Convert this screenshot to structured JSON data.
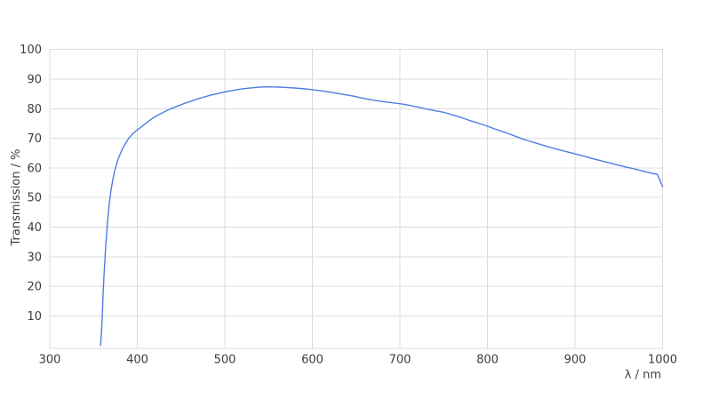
{
  "chart": {
    "background": "#ffffff",
    "text_color": "#3d3d3d",
    "grid_color": "#dcdcdc",
    "line_color": "#4d7ee0"
  },
  "chart_data": {
    "type": "line",
    "title": "",
    "xlabel": "λ / nm",
    "ylabel": "Transmission / %",
    "xlim": [
      300,
      1000
    ],
    "ylim": [
      0,
      100
    ],
    "x_ticks": [
      300,
      400,
      500,
      600,
      700,
      800,
      900,
      1000
    ],
    "y_ticks": [
      10,
      20,
      30,
      40,
      50,
      60,
      70,
      80,
      90,
      100
    ],
    "grid": "on",
    "legend": "none",
    "series": [
      {
        "name": "Transmission",
        "color": "#4d7ee0",
        "points": [
          [
            358,
            0
          ],
          [
            359,
            4
          ],
          [
            360,
            10
          ],
          [
            361,
            18
          ],
          [
            362,
            24
          ],
          [
            363,
            29
          ],
          [
            364,
            34
          ],
          [
            365,
            38
          ],
          [
            366,
            42
          ],
          [
            367,
            45
          ],
          [
            368,
            48
          ],
          [
            370,
            52.5
          ],
          [
            372,
            56
          ],
          [
            374,
            58.8
          ],
          [
            376,
            61
          ],
          [
            378,
            62.9
          ],
          [
            380,
            64.4
          ],
          [
            383,
            66.4
          ],
          [
            386,
            68
          ],
          [
            390,
            69.9
          ],
          [
            394,
            71.3
          ],
          [
            398,
            72.4
          ],
          [
            403,
            73.5
          ],
          [
            408,
            74.7
          ],
          [
            413,
            75.8
          ],
          [
            418,
            76.9
          ],
          [
            424,
            77.9
          ],
          [
            430,
            78.8
          ],
          [
            436,
            79.7
          ],
          [
            442,
            80.4
          ],
          [
            448,
            81.1
          ],
          [
            454,
            81.8
          ],
          [
            460,
            82.4
          ],
          [
            466,
            83
          ],
          [
            472,
            83.6
          ],
          [
            478,
            84.1
          ],
          [
            484,
            84.6
          ],
          [
            490,
            85
          ],
          [
            496,
            85.4
          ],
          [
            502,
            85.8
          ],
          [
            508,
            86.1
          ],
          [
            514,
            86.4
          ],
          [
            520,
            86.7
          ],
          [
            526,
            86.9
          ],
          [
            532,
            87.1
          ],
          [
            538,
            87.25
          ],
          [
            544,
            87.35
          ],
          [
            550,
            87.4
          ],
          [
            556,
            87.35
          ],
          [
            562,
            87.3
          ],
          [
            568,
            87.2
          ],
          [
            574,
            87.1
          ],
          [
            580,
            87
          ],
          [
            586,
            86.85
          ],
          [
            592,
            86.7
          ],
          [
            598,
            86.5
          ],
          [
            606,
            86.2
          ],
          [
            614,
            85.9
          ],
          [
            622,
            85.5
          ],
          [
            630,
            85.1
          ],
          [
            638,
            84.7
          ],
          [
            646,
            84.3
          ],
          [
            654,
            83.8
          ],
          [
            662,
            83.3
          ],
          [
            670,
            82.9
          ],
          [
            678,
            82.5
          ],
          [
            686,
            82.2
          ],
          [
            694,
            81.9
          ],
          [
            702,
            81.6
          ],
          [
            710,
            81.2
          ],
          [
            718,
            80.7
          ],
          [
            726,
            80.2
          ],
          [
            734,
            79.7
          ],
          [
            742,
            79.2
          ],
          [
            750,
            78.8
          ],
          [
            758,
            78.1
          ],
          [
            766,
            77.4
          ],
          [
            774,
            76.6
          ],
          [
            782,
            75.8
          ],
          [
            790,
            75.1
          ],
          [
            798,
            74.3
          ],
          [
            806,
            73.4
          ],
          [
            814,
            72.6
          ],
          [
            822,
            71.8
          ],
          [
            830,
            70.9
          ],
          [
            838,
            70
          ],
          [
            846,
            69.2
          ],
          [
            854,
            68.5
          ],
          [
            862,
            67.8
          ],
          [
            870,
            67.1
          ],
          [
            878,
            66.4
          ],
          [
            886,
            65.8
          ],
          [
            894,
            65.2
          ],
          [
            902,
            64.6
          ],
          [
            910,
            64
          ],
          [
            918,
            63.3
          ],
          [
            926,
            62.7
          ],
          [
            934,
            62.1
          ],
          [
            942,
            61.5
          ],
          [
            950,
            60.9
          ],
          [
            958,
            60.3
          ],
          [
            966,
            59.8
          ],
          [
            974,
            59.2
          ],
          [
            982,
            58.6
          ],
          [
            988,
            58.2
          ],
          [
            994,
            57.8
          ],
          [
            1000,
            53.7
          ]
        ]
      }
    ]
  }
}
